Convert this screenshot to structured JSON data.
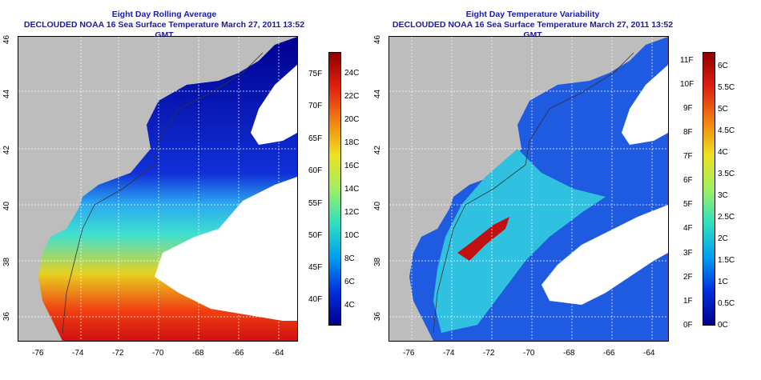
{
  "left_panel": {
    "title_line1": "Eight Day Rolling Average",
    "title_line2": "DECLOUDED NOAA 16 Sea Surface Temperature March 27, 2011 13:52 GMT",
    "colorbar_c": [
      "24C",
      "22C",
      "20C",
      "18C",
      "16C",
      "14C",
      "12C",
      "10C",
      "8C",
      "6C",
      "4C"
    ],
    "colorbar_f": [
      "75F",
      "70F",
      "65F",
      "60F",
      "55F",
      "50F",
      "45F",
      "40F"
    ]
  },
  "right_panel": {
    "title_line1": "Eight Day Temperature Variability",
    "title_line2": "DECLOUDED NOAA 16 Sea Surface Temperature March 27, 2011 13:52 GMT",
    "colorbar_c": [
      "6C",
      "5.5C",
      "5C",
      "4.5C",
      "4C",
      "3.5C",
      "3C",
      "2.5C",
      "2C",
      "1.5C",
      "1C",
      "0.5C",
      "0C"
    ],
    "colorbar_f": [
      "11F",
      "10F",
      "9F",
      "8F",
      "7F",
      "6F",
      "5F",
      "4F",
      "3F",
      "2F",
      "1F",
      "0F"
    ]
  },
  "x_ticks": [
    "-76",
    "-74",
    "-72",
    "-70",
    "-68",
    "-66",
    "-64"
  ],
  "y_ticks": [
    "46",
    "44",
    "42",
    "40",
    "38",
    "36"
  ],
  "colors": {
    "land": "#bdbdbd",
    "title": "#1a1aa8"
  }
}
